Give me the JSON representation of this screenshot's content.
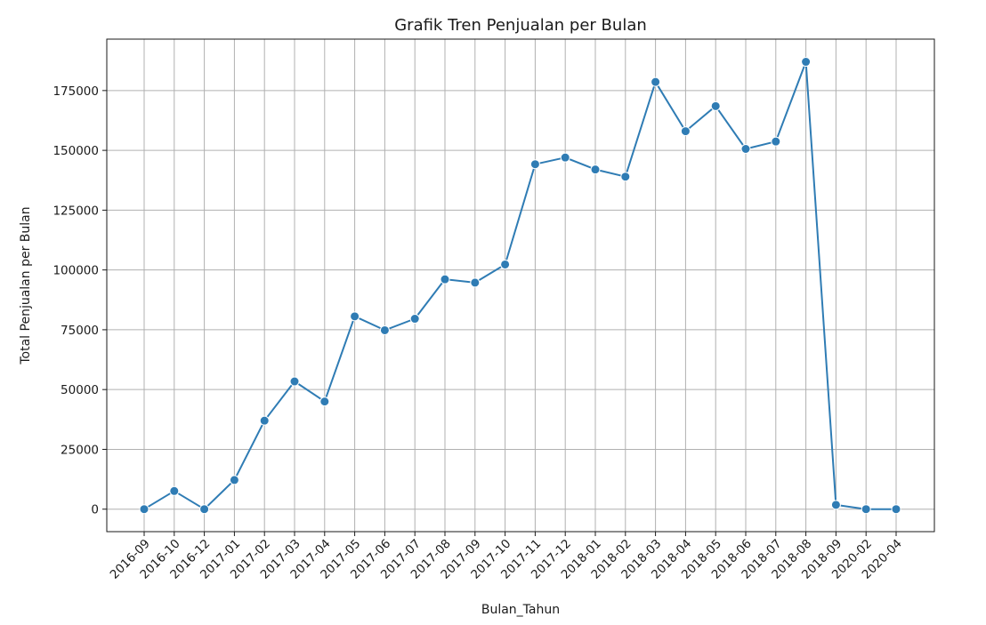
{
  "chart_data": {
    "type": "line",
    "title": "Grafik Tren Penjualan per Bulan",
    "xlabel": "Bulan_Tahun",
    "ylabel": "Total Penjualan per Bulan",
    "categories": [
      "2016-09",
      "2016-10",
      "2016-12",
      "2017-01",
      "2017-02",
      "2017-03",
      "2017-04",
      "2017-05",
      "2017-06",
      "2017-07",
      "2017-08",
      "2017-09",
      "2017-10",
      "2017-11",
      "2017-12",
      "2018-01",
      "2018-02",
      "2018-03",
      "2018-04",
      "2018-05",
      "2018-06",
      "2018-07",
      "2018-08",
      "2018-09",
      "2020-02",
      "2020-04"
    ],
    "series": [
      {
        "values": [
          0,
          7600,
          0,
          12200,
          37000,
          53400,
          45000,
          80600,
          74800,
          79600,
          96100,
          94700,
          102300,
          144200,
          147000,
          142000,
          139000,
          178600,
          158000,
          168500,
          150600,
          153700,
          187000,
          1800,
          0,
          0
        ],
        "color": "#2f7cb4"
      }
    ],
    "yticks": [
      0,
      25000,
      50000,
      75000,
      100000,
      125000,
      150000,
      175000
    ],
    "ylim": [
      -9400,
      196500
    ],
    "grid": true,
    "legend": "none"
  }
}
